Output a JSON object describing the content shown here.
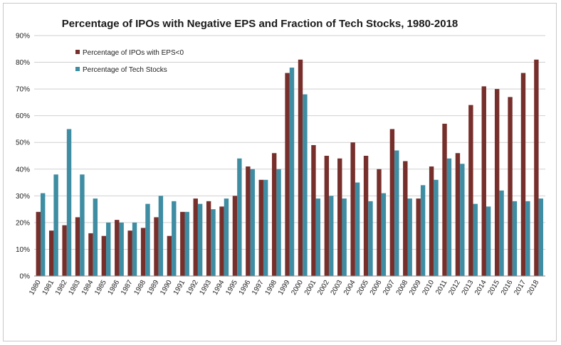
{
  "chart_data": {
    "type": "bar",
    "title": "Percentage of IPOs with Negative EPS and Fraction of Tech Stocks, 1980-2018",
    "xlabel": "",
    "ylabel": "",
    "ylim": [
      0,
      90
    ],
    "yticks": [
      "0%",
      "10%",
      "20%",
      "30%",
      "40%",
      "50%",
      "60%",
      "70%",
      "80%",
      "90%"
    ],
    "grid": "horizontal",
    "legend_position": "top-left",
    "categories": [
      "1980",
      "1981",
      "1982",
      "1983",
      "1984",
      "1985",
      "1986",
      "1987",
      "1988",
      "1989",
      "1990",
      "1991",
      "1992",
      "1993",
      "1994",
      "1995",
      "1996",
      "1997",
      "1998",
      "1999",
      "2000",
      "2001",
      "2002",
      "2003",
      "2004",
      "2005",
      "2006",
      "2007",
      "2008",
      "2009",
      "2010",
      "2011",
      "2012",
      "2013",
      "2014",
      "2015",
      "2016",
      "2017",
      "2018"
    ],
    "series": [
      {
        "name": "Percentage of IPOs with EPS<0",
        "color": "#772f2b",
        "values": [
          24,
          17,
          19,
          22,
          16,
          15,
          21,
          17,
          18,
          22,
          15,
          24,
          29,
          28,
          26,
          30,
          41,
          36,
          46,
          76,
          81,
          49,
          45,
          44,
          50,
          45,
          40,
          55,
          43,
          29,
          41,
          57,
          46,
          64,
          71,
          70,
          67,
          76,
          81
        ]
      },
      {
        "name": "Percentage of Tech Stocks",
        "color": "#3e8da3",
        "values": [
          31,
          38,
          55,
          38,
          29,
          20,
          20,
          20,
          27,
          30,
          28,
          24,
          27,
          25,
          29,
          44,
          40,
          36,
          40,
          78,
          68,
          29,
          30,
          29,
          35,
          28,
          31,
          47,
          29,
          34,
          36,
          44,
          42,
          27,
          26,
          32,
          28,
          28,
          29
        ]
      }
    ]
  }
}
